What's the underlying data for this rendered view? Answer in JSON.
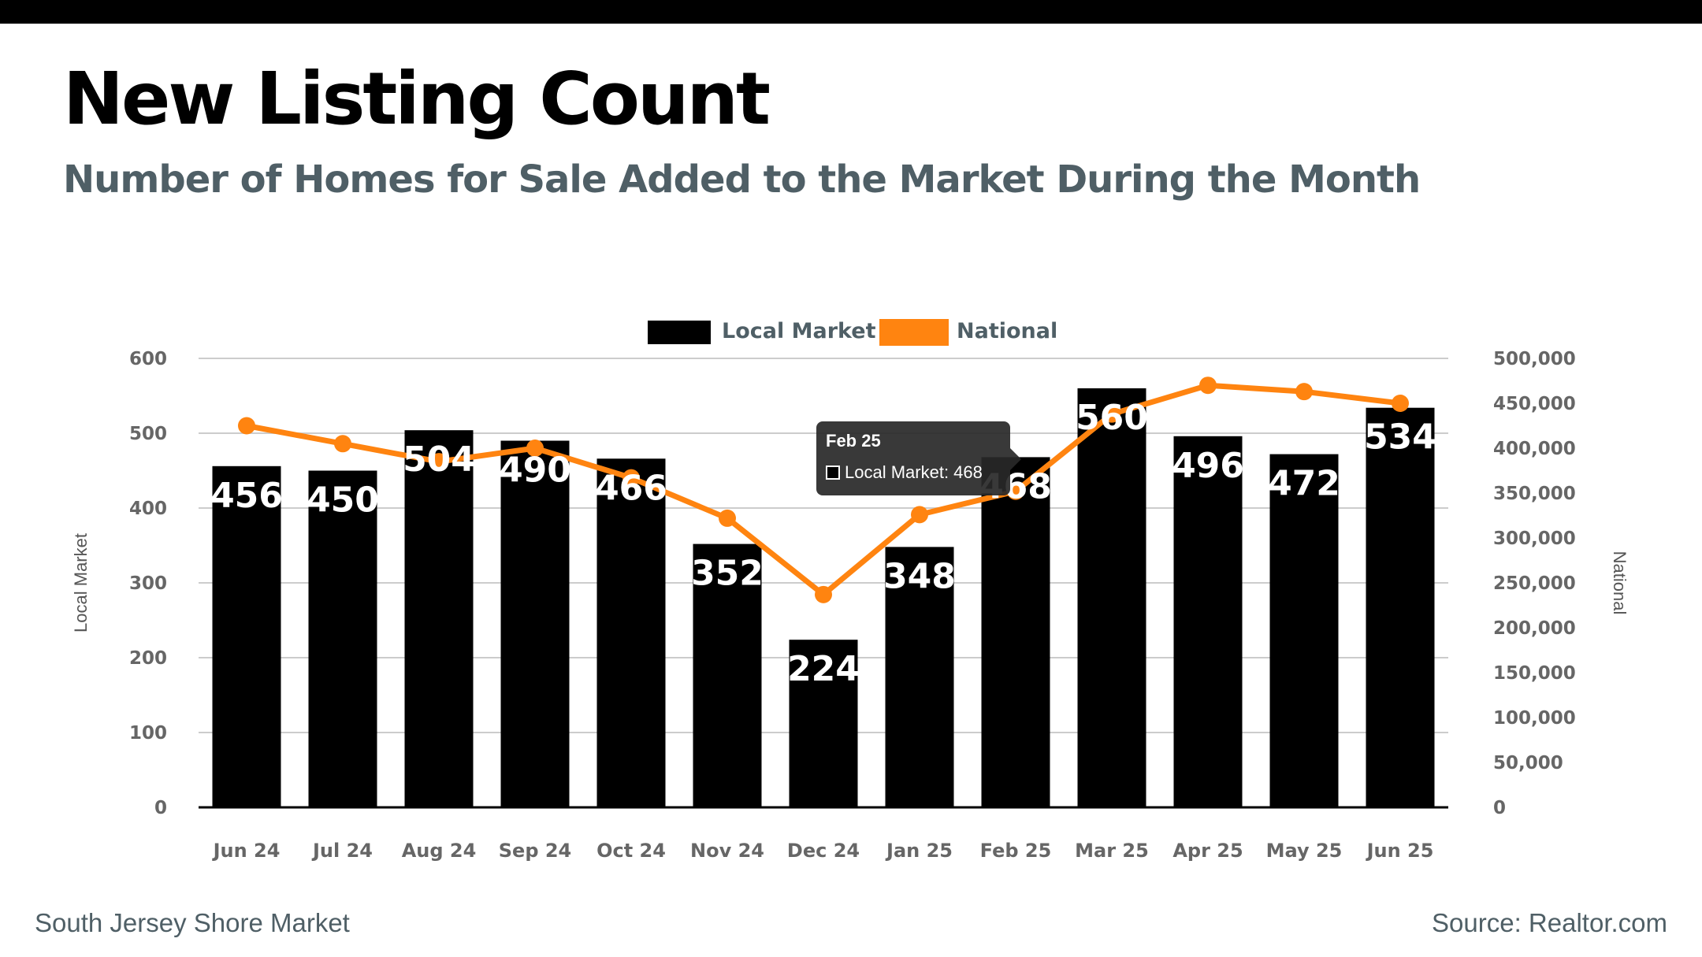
{
  "header": {
    "title": "New Listing Count",
    "subtitle": "Number of Homes for Sale Added to the Market During the Month"
  },
  "footer": {
    "left": "South Jersey Shore Market",
    "right": "Source: Realtor.com"
  },
  "tooltip": {
    "title": "Feb 25",
    "text": "Local Market: 468"
  },
  "colors": {
    "bar": "#000000",
    "line": "#ff8410",
    "grid": "#cccccc",
    "tick": "#666666",
    "legend_text": "#4f5f66"
  },
  "chart_data": {
    "type": "bar",
    "categories": [
      "Jun 24",
      "Jul 24",
      "Aug 24",
      "Sep 24",
      "Oct 24",
      "Nov 24",
      "Dec 24",
      "Jan 25",
      "Feb 25",
      "Mar 25",
      "Apr 25",
      "May 25",
      "Jun 25"
    ],
    "series": [
      {
        "name": "Local Market",
        "type": "bar",
        "axis": "left",
        "values": [
          456,
          450,
          504,
          490,
          466,
          352,
          224,
          348,
          468,
          560,
          496,
          472,
          534
        ]
      },
      {
        "name": "National",
        "type": "line",
        "axis": "right",
        "values": [
          425000,
          405000,
          385000,
          400000,
          367000,
          322000,
          237000,
          326000,
          352000,
          438000,
          470000,
          463000,
          450000
        ]
      }
    ],
    "ylabel_left": "Local Market",
    "ylabel_right": "National",
    "ylim_left": [
      0,
      600
    ],
    "ylim_right": [
      0,
      500000
    ],
    "yticks_left": [
      "0",
      "100",
      "200",
      "300",
      "400",
      "500",
      "600"
    ],
    "yticks_right": [
      "0",
      "50,000",
      "100,000",
      "150,000",
      "200,000",
      "250,000",
      "300,000",
      "350,000",
      "400,000",
      "450,000",
      "500,000"
    ],
    "grid": true,
    "legend": "top-center"
  }
}
